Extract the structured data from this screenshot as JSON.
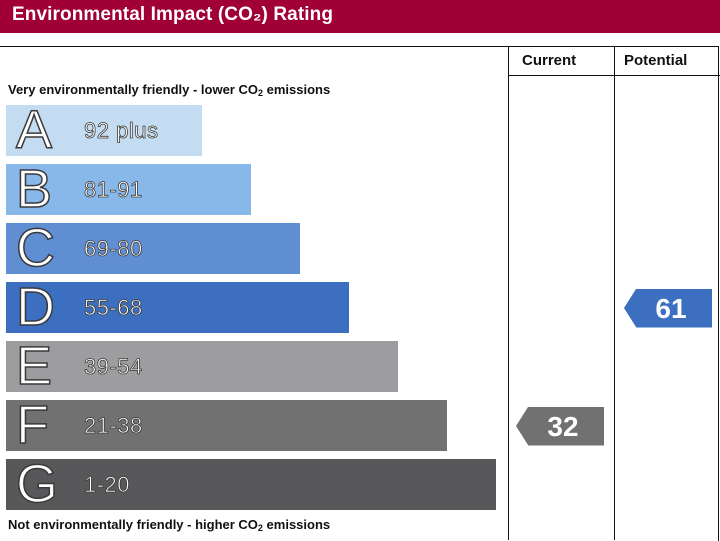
{
  "header": {
    "title": "Environmental Impact (CO₂) Rating"
  },
  "columns": {
    "current": "Current",
    "potential": "Potential"
  },
  "captions": {
    "top_pre": "Very environmentally friendly - lower CO",
    "top_post": " emissions",
    "bottom_pre": "Not environmentally friendly - higher CO",
    "bottom_post": " emissions",
    "subscript": "2"
  },
  "colors": {
    "title_bar": "#a00035",
    "current_arrow": "#717171",
    "potential_arrow": "#3c6fc0"
  },
  "chart_data": {
    "type": "bar",
    "title": "Environmental Impact (CO₂) Rating",
    "categories": [
      "A",
      "B",
      "C",
      "D",
      "E",
      "F",
      "G"
    ],
    "ranges": [
      "92 plus",
      "81-91",
      "69-80",
      "55-68",
      "39-54",
      "21-38",
      "1-20"
    ],
    "colors": [
      "#c3dcf2",
      "#88b7ea",
      "#5f8fd2",
      "#3c6fc0",
      "#9d9c9e",
      "#717171",
      "#58575a"
    ],
    "current_rating": 32,
    "current_band": "F",
    "potential_rating": 61,
    "potential_band": "D"
  }
}
